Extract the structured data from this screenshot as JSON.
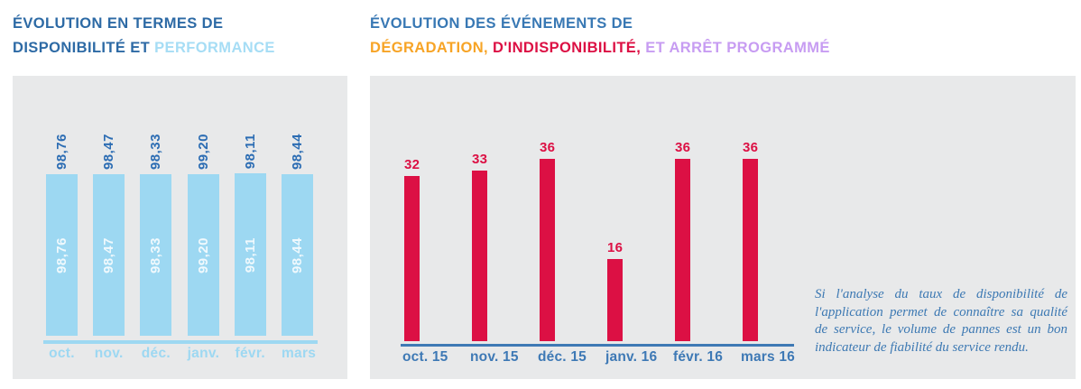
{
  "titles": {
    "availability": {
      "line1": "ÉVOLUTION EN TERMES DE",
      "line2_dark": "DISPONIBILITÉ ET ",
      "line2_light": "PERFORMANCE"
    },
    "events": {
      "line1": "ÉVOLUTION DES ÉVÉNEMENTS DE",
      "line2_orange": "DÉGRADATION, ",
      "line2_red": "D'INDISPONIBILITÉ, ",
      "line2_purple": "ET ARRÊT PROGRAMMÉ"
    }
  },
  "annotation": {
    "text": "Si l'analyse du taux de disponibilité de l'application permet de connaître sa qualité de service, le volume de pannes est un bon indicateur de fiabilité du service rendu."
  },
  "colors": {
    "title_dark_blue": "#2D6AA5",
    "title_medium_blue": "#3878B4",
    "light_blue": "#9DD8F2",
    "value_blue": "#2B6CB3",
    "orange": "#F7A426",
    "red": "#DC1044",
    "purple": "#C79CF2",
    "steel_blue": "#3E79B5",
    "panel_gray": "#E8E9EA"
  },
  "chart_data": [
    {
      "type": "bar",
      "title": "ÉVOLUTION EN TERMES DE DISPONIBILITÉ ET PERFORMANCE",
      "categories": [
        "oct.",
        "nov.",
        "déc.",
        "janv.",
        "févr.",
        "mars"
      ],
      "values": [
        98.76,
        98.47,
        98.33,
        99.2,
        98.11,
        98.44
      ],
      "value_labels": [
        "98,76",
        "98,47",
        "98,33",
        "99,20",
        "98,11",
        "98,44"
      ],
      "ylim": [
        0,
        100
      ],
      "bar_color": "#9DD8F2",
      "value_label_position": "above-and-inside-bars, rotated 90°",
      "grid": false,
      "legend": false
    },
    {
      "type": "bar",
      "title": "ÉVOLUTION DES ÉVÉNEMENTS DE DÉGRADATION, D'INDISPONIBILITÉ, ET ARRÊT PROGRAMMÉ",
      "categories": [
        "oct. 15",
        "nov. 15",
        "déc. 15",
        "janv. 16",
        "févr. 16",
        "mars 16"
      ],
      "values": [
        32,
        33,
        36,
        16,
        36,
        36
      ],
      "value_labels": [
        "32",
        "33",
        "36",
        "16",
        "36",
        "36"
      ],
      "ylim": [
        0,
        39
      ],
      "bar_color": "#DC1044",
      "value_label_position": "above-bars",
      "grid": false,
      "legend": false
    }
  ]
}
